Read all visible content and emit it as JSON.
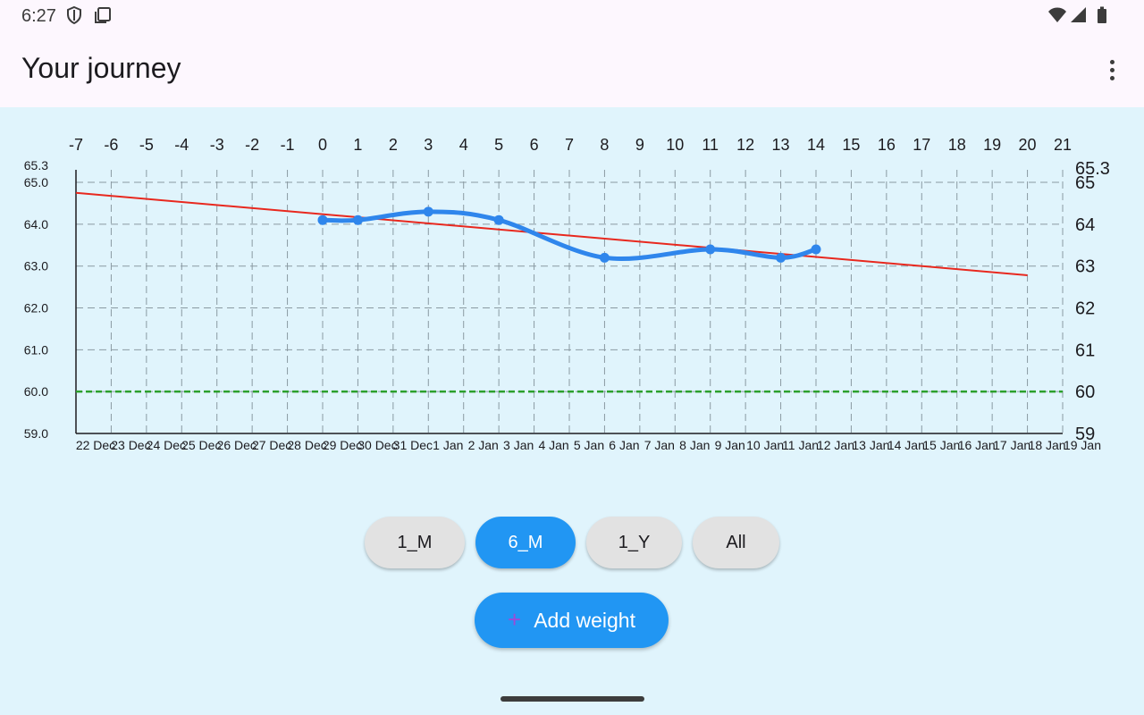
{
  "status_bar": {
    "time": "6:27",
    "icons": [
      "shield-icon",
      "screenshot-icon",
      "wifi-icon",
      "cellular-icon",
      "battery-icon"
    ]
  },
  "app_bar": {
    "title": "Your journey",
    "menu_icon": "more-vert-icon"
  },
  "range_chips": [
    {
      "label": "1_M",
      "selected": false
    },
    {
      "label": "6_M",
      "selected": true
    },
    {
      "label": "1_Y",
      "selected": false
    },
    {
      "label": "All",
      "selected": false
    }
  ],
  "add_button": {
    "label": "Add weight",
    "icon": "plus-icon"
  },
  "colors": {
    "accent": "#2196f3",
    "background": "#e0f4fc",
    "app_bar": "#fdf7fe",
    "chip": "#e2e2e2",
    "trend": "#e8281e",
    "goal": "#2ca02c",
    "series": "#2f86ec"
  },
  "chart_data": {
    "type": "line",
    "title": "",
    "top_axis_ticks": [
      "-7",
      "-6",
      "-5",
      "-4",
      "-3",
      "-2",
      "-1",
      "0",
      "1",
      "2",
      "3",
      "4",
      "5",
      "6",
      "7",
      "8",
      "9",
      "10",
      "11",
      "12",
      "13",
      "14",
      "15",
      "16",
      "17",
      "18",
      "19",
      "20",
      "21"
    ],
    "x_labels": [
      "22 Dec",
      "23 Dec",
      "24 Dec",
      "25 Dec",
      "26 Dec",
      "27 Dec",
      "28 Dec",
      "29 Dec",
      "30 Dec",
      "31 Dec",
      "1 Jan",
      "2 Jan",
      "3 Jan",
      "4 Jan",
      "5 Jan",
      "6 Jan",
      "7 Jan",
      "8 Jan",
      "9 Jan",
      "10 Jan",
      "11 Jan",
      "12 Jan",
      "13 Jan",
      "14 Jan",
      "15 Jan",
      "16 Jan",
      "17 Jan",
      "18 Jan",
      "19 Jan"
    ],
    "xlim": [
      -7,
      21
    ],
    "ylim": [
      59.0,
      65.3
    ],
    "left_ticks": [
      "65.3",
      "65.0",
      "64.0",
      "63.0",
      "62.0",
      "61.0",
      "60.0",
      "59.0"
    ],
    "right_ticks": [
      "65.3",
      "65",
      "64",
      "63",
      "62",
      "61",
      "60",
      "59"
    ],
    "grid": true,
    "series": [
      {
        "x": [
          0,
          1,
          3,
          5,
          8,
          11,
          13,
          14
        ],
        "values": [
          64.1,
          64.1,
          64.3,
          64.1,
          63.2,
          63.4,
          63.2,
          63.4
        ]
      }
    ],
    "trend_line": {
      "x": [
        -7,
        20
      ],
      "values": [
        64.75,
        62.78
      ]
    },
    "goal_line": {
      "value": 60.0
    }
  }
}
